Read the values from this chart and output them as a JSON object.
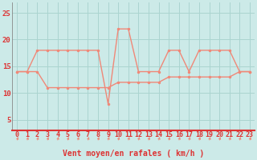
{
  "xlabel": "Vent moyen/en rafales ( km/h )",
  "background_color": "#cceae8",
  "grid_color": "#aad4d0",
  "line_color": "#f08878",
  "x_hours": [
    0,
    1,
    2,
    3,
    4,
    5,
    6,
    7,
    8,
    9,
    10,
    11,
    12,
    13,
    14,
    15,
    16,
    17,
    18,
    19,
    20,
    21,
    22,
    23
  ],
  "wind_gust": [
    14,
    14,
    18,
    18,
    18,
    18,
    18,
    18,
    18,
    8,
    22,
    22,
    14,
    14,
    14,
    18,
    18,
    14,
    18,
    18,
    18,
    18,
    14,
    14
  ],
  "wind_avg": [
    14,
    14,
    14,
    11,
    11,
    11,
    11,
    11,
    11,
    11,
    12,
    12,
    12,
    12,
    12,
    13,
    13,
    13,
    13,
    13,
    13,
    13,
    14,
    14
  ],
  "ylim": [
    3,
    27
  ],
  "yticks": [
    5,
    10,
    15,
    20,
    25
  ],
  "marker_size": 2.5,
  "line_width": 1.0,
  "axis_color": "#dd3333",
  "tick_fontsize": 6,
  "xlabel_fontsize": 7
}
